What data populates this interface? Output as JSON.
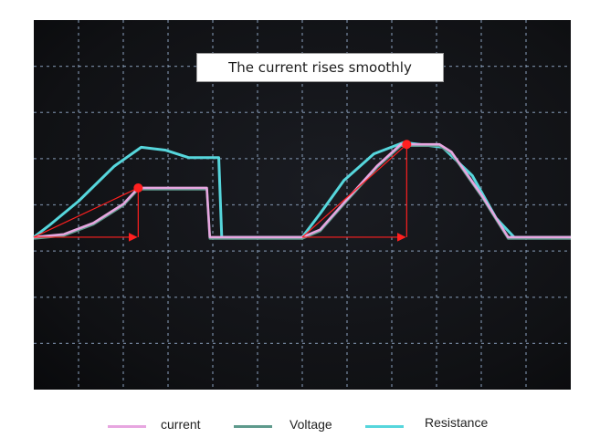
{
  "chart_data": {
    "type": "line",
    "title": "",
    "annotation": "The current rises smoothly",
    "grid": true,
    "background": "#0e0e10",
    "grid_color": "#8fa6c4",
    "series": [
      {
        "name": "current",
        "color": "#e7a6e0",
        "points": [
          [
            0,
            0
          ],
          [
            1,
            0.03
          ],
          [
            2,
            0.15
          ],
          [
            3,
            0.35
          ],
          [
            3.5,
            0.52
          ],
          [
            4.9,
            0.52
          ],
          [
            5.8,
            0.52
          ],
          [
            5.9,
            0
          ],
          [
            9,
            0
          ],
          [
            9.6,
            0.08
          ],
          [
            10.5,
            0.4
          ],
          [
            11.5,
            0.75
          ],
          [
            12.3,
            0.98
          ],
          [
            13.6,
            0.98
          ],
          [
            14,
            0.9
          ],
          [
            15,
            0.45
          ],
          [
            15.9,
            0
          ],
          [
            18,
            0
          ]
        ]
      },
      {
        "name": "Voltage",
        "color": "#5e9a8c",
        "points": [
          [
            0,
            0
          ],
          [
            1,
            0.03
          ],
          [
            2,
            0.15
          ],
          [
            3,
            0.35
          ],
          [
            3.5,
            0.52
          ],
          [
            4.9,
            0.52
          ],
          [
            5.8,
            0.52
          ],
          [
            5.9,
            0
          ],
          [
            9,
            0
          ],
          [
            9.6,
            0.08
          ],
          [
            10.5,
            0.4
          ],
          [
            11.5,
            0.75
          ],
          [
            12.3,
            0.98
          ],
          [
            13.6,
            0.98
          ],
          [
            14,
            0.9
          ],
          [
            15,
            0.45
          ],
          [
            15.9,
            0
          ],
          [
            18,
            0
          ]
        ]
      },
      {
        "name": "Resistance",
        "color": "#56d6dc",
        "points": [
          [
            0,
            0
          ],
          [
            0.5,
            0.12
          ],
          [
            1.5,
            0.38
          ],
          [
            2.7,
            0.75
          ],
          [
            3.6,
            0.95
          ],
          [
            4.4,
            0.92
          ],
          [
            5.2,
            0.84
          ],
          [
            6.2,
            0.84
          ],
          [
            6.3,
            0
          ],
          [
            9,
            0
          ],
          [
            9.6,
            0.25
          ],
          [
            10.4,
            0.6
          ],
          [
            11.4,
            0.88
          ],
          [
            12.4,
            1.0
          ],
          [
            13.7,
            0.95
          ],
          [
            14.7,
            0.65
          ],
          [
            15.5,
            0.2
          ],
          [
            16.1,
            0
          ],
          [
            18,
            0
          ]
        ]
      }
    ],
    "annotations": [
      {
        "type": "slope_arrow",
        "color": "#ff2020",
        "from": [
          0,
          0
        ],
        "peak": [
          3.5,
          0.52
        ]
      },
      {
        "type": "slope_arrow",
        "color": "#ff2020",
        "from": [
          9,
          0
        ],
        "peak": [
          12.5,
          0.98
        ]
      }
    ],
    "legend_position": "bottom"
  }
}
